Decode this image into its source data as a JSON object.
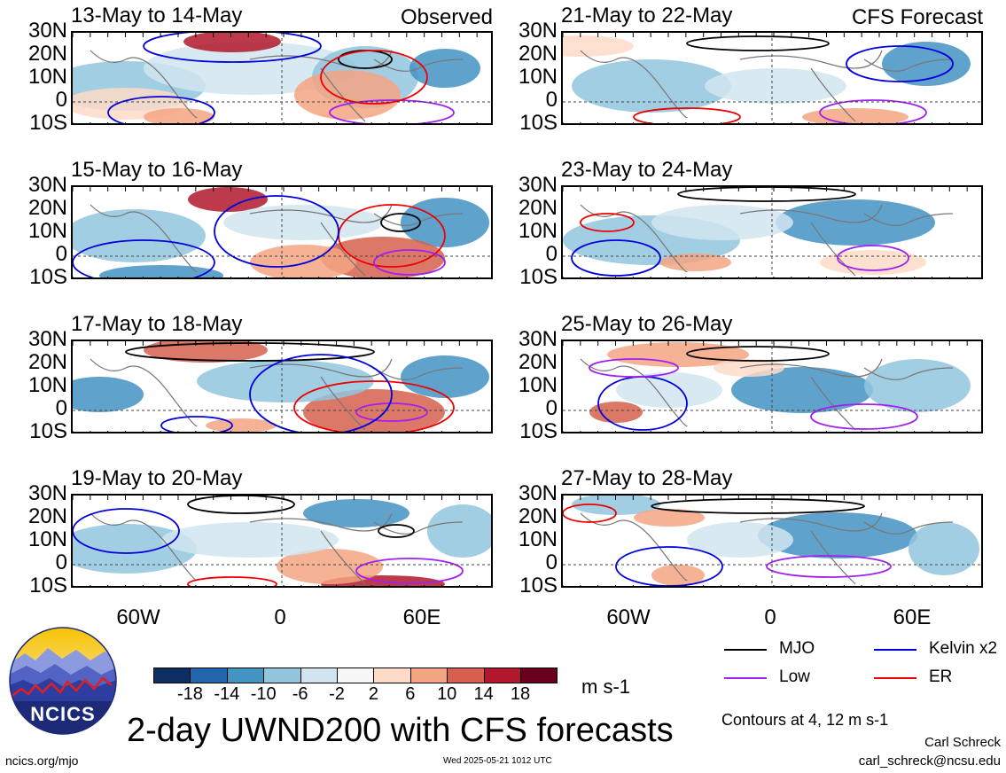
{
  "panel_labels": {
    "observed": "Observed",
    "forecast": "CFS Forecast"
  },
  "panels": [
    {
      "col": 0,
      "row": 0,
      "title": "13-May to 14-May",
      "label": "Observed"
    },
    {
      "col": 0,
      "row": 1,
      "title": "15-May to 16-May"
    },
    {
      "col": 0,
      "row": 2,
      "title": "17-May to 18-May"
    },
    {
      "col": 0,
      "row": 3,
      "title": "19-May to 20-May"
    },
    {
      "col": 1,
      "row": 0,
      "title": "21-May to 22-May",
      "label": "CFS Forecast"
    },
    {
      "col": 1,
      "row": 1,
      "title": "23-May to 24-May"
    },
    {
      "col": 1,
      "row": 2,
      "title": "25-May to 26-May"
    },
    {
      "col": 1,
      "row": 3,
      "title": "27-May to 28-May"
    }
  ],
  "lat_labels": [
    "30N",
    "20N",
    "10N",
    "0",
    "10S"
  ],
  "lon_labels": [
    "60W",
    "0",
    "60E"
  ],
  "colorbar": {
    "colors": [
      "#0d2e62",
      "#2166ac",
      "#4393c3",
      "#92c5de",
      "#d1e5f0",
      "#f7f7f7",
      "#fddbc7",
      "#f4a582",
      "#d6604d",
      "#b2182b",
      "#67001f"
    ],
    "ticks": [
      "-18",
      "-14",
      "-10",
      "-6",
      "-2",
      "2",
      "6",
      "10",
      "14",
      "18"
    ],
    "units": "m s-1"
  },
  "legend": [
    {
      "label": "MJO",
      "color": "#000000"
    },
    {
      "label": "Kelvin x2",
      "color": "#0000dd"
    },
    {
      "label": "Low",
      "color": "#a020f0"
    },
    {
      "label": "ER",
      "color": "#ee0000"
    }
  ],
  "contour_note": "Contours at 4, 12 m s-1",
  "main_title": "2-day UWND200 with CFS forecasts",
  "logo_text": "NCICS",
  "footer_left": "ncics.org/mjo",
  "footer_timestamp": "Wed 2025-05-21 1012 UTC",
  "author_name": "Carl Schreck",
  "author_email": "carl_schreck@ncsu.edu"
}
